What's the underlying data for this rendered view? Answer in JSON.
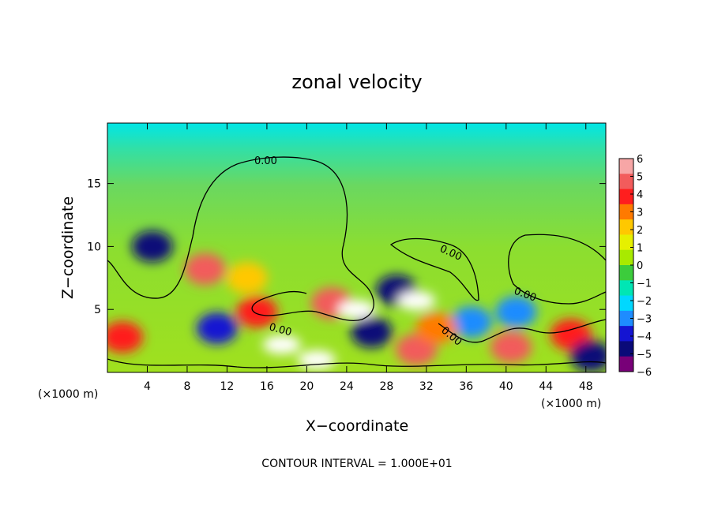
{
  "chart_data": {
    "type": "heatmap",
    "title": "zonal velocity",
    "xlabel": "X−coordinate",
    "ylabel": "Z−coordinate",
    "x_unit_left": "(×1000 m)",
    "x_unit_right": "(×1000 m)",
    "footer": "CONTOUR INTERVAL = 1.000E+01",
    "xlim": [
      0,
      50
    ],
    "ylim": [
      0,
      19.8
    ],
    "x_ticks": [
      "4",
      "8",
      "12",
      "16",
      "20",
      "24",
      "28",
      "32",
      "36",
      "40",
      "44",
      "48"
    ],
    "x_tick_values": [
      4,
      8,
      12,
      16,
      20,
      24,
      28,
      32,
      36,
      40,
      44,
      48
    ],
    "y_ticks": [
      "5",
      "10",
      "15"
    ],
    "y_tick_values": [
      5,
      10,
      15
    ],
    "colorbar": {
      "labels": [
        "6",
        "5",
        "4",
        "3",
        "2",
        "1",
        "0",
        "−1",
        "−2",
        "−3",
        "−4",
        "−5",
        "−6"
      ],
      "values": [
        6,
        5,
        4,
        3,
        2,
        1,
        0,
        -1,
        -2,
        -3,
        -4,
        -5,
        -6
      ],
      "colors": [
        "#f7a6a6",
        "#f25c5c",
        "#ff1e1e",
        "#ff7a00",
        "#ffc800",
        "#e6f000",
        "#a8ea00",
        "#3ccc3c",
        "#00e6b4",
        "#00d8ff",
        "#1e8cff",
        "#1414d2",
        "#0a0a78",
        "#780078"
      ]
    },
    "contour_labels": [
      "0.00",
      "0.00",
      "0.00",
      "0.00",
      "0.00",
      "0.00"
    ],
    "field_blobs": [
      {
        "x": 4.5,
        "z": 10.0,
        "value": -5
      },
      {
        "x": 9.8,
        "z": 8.2,
        "value": 5
      },
      {
        "x": 1.5,
        "z": 2.8,
        "value": 4
      },
      {
        "x": 11.0,
        "z": 3.5,
        "value": -4
      },
      {
        "x": 15.0,
        "z": 4.8,
        "value": 4
      },
      {
        "x": 17.5,
        "z": 2.2,
        "value": 7
      },
      {
        "x": 21.0,
        "z": 1.0,
        "value": 7
      },
      {
        "x": 22.5,
        "z": 5.5,
        "value": 5
      },
      {
        "x": 25.0,
        "z": 5.0,
        "value": 7
      },
      {
        "x": 26.5,
        "z": 3.2,
        "value": -5
      },
      {
        "x": 29.0,
        "z": 6.5,
        "value": -5
      },
      {
        "x": 31.0,
        "z": 5.7,
        "value": 7
      },
      {
        "x": 31.0,
        "z": 1.8,
        "value": 5
      },
      {
        "x": 36.5,
        "z": 4.0,
        "value": -3
      },
      {
        "x": 40.5,
        "z": 2.0,
        "value": 5
      },
      {
        "x": 41.0,
        "z": 4.8,
        "value": -3
      },
      {
        "x": 46.5,
        "z": 3.0,
        "value": 4
      },
      {
        "x": 48.5,
        "z": 1.3,
        "value": -5
      },
      {
        "x": 14.0,
        "z": 7.5,
        "value": 2
      },
      {
        "x": 33.0,
        "z": 3.5,
        "value": 3
      }
    ]
  }
}
